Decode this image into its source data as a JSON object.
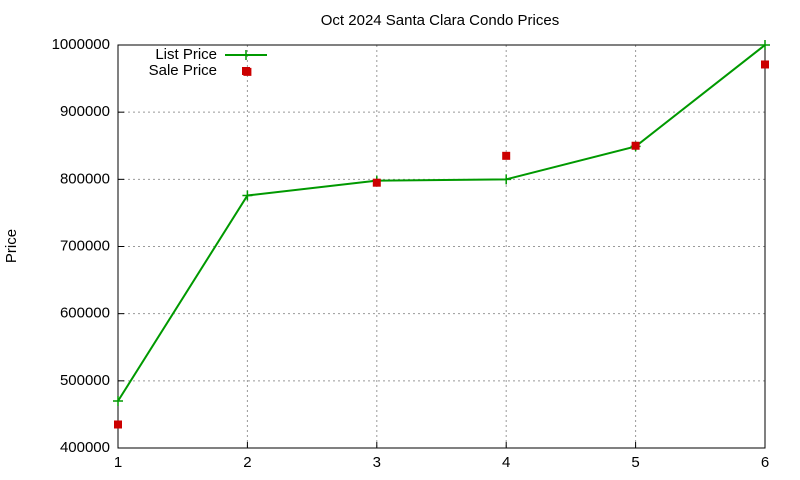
{
  "chart_data": {
    "type": "line",
    "title": "Oct 2024 Santa Clara Condo Prices",
    "y_label": "Price",
    "x": [
      1,
      2,
      3,
      4,
      5,
      6
    ],
    "series": [
      {
        "name": "List Price",
        "color": "#009900",
        "style": "linespoints",
        "values": [
          470000,
          776000,
          798000,
          800000,
          849000,
          1000000
        ]
      },
      {
        "name": "Sale Price",
        "color": "#cc0000",
        "style": "points",
        "values": [
          435000,
          960000,
          795000,
          835000,
          850000,
          971000
        ]
      }
    ],
    "xlim": [
      1,
      6
    ],
    "xticks": [
      1,
      2,
      3,
      4,
      5,
      6
    ],
    "ylim": [
      400000,
      1000000
    ],
    "yticks": [
      400000,
      500000,
      600000,
      700000,
      800000,
      900000,
      1000000
    ],
    "grid": true,
    "legend": "top-left"
  }
}
